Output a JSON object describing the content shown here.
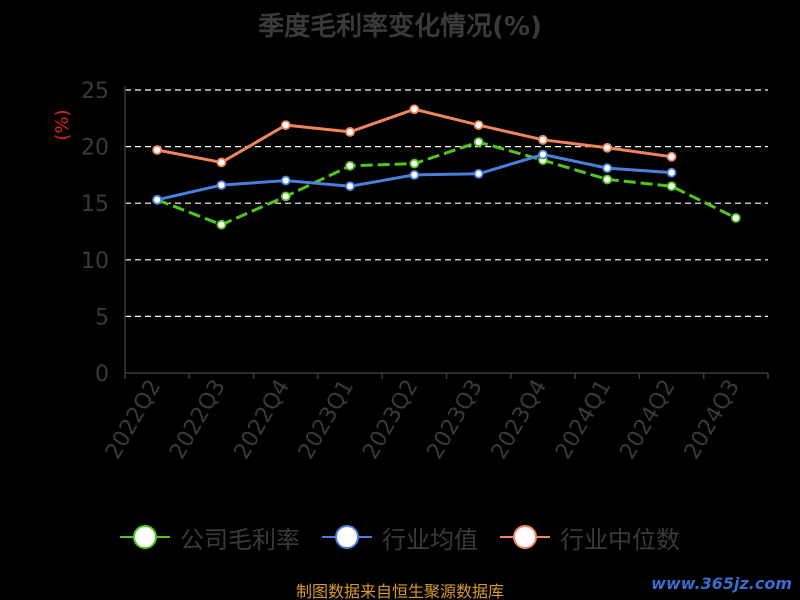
{
  "chart_data": {
    "type": "line",
    "title": "季度毛利率变化情况(%)",
    "ylabel": "(%)",
    "categories": [
      "2022Q2",
      "2022Q3",
      "2022Q4",
      "2023Q1",
      "2023Q2",
      "2023Q3",
      "2023Q4",
      "2024Q1",
      "2024Q2",
      "2024Q3"
    ],
    "ylim": [
      0,
      25
    ],
    "yticks": [
      0,
      5,
      10,
      15,
      20,
      25
    ],
    "grid": true,
    "legend_position": "bottom",
    "series": [
      {
        "name": "公司毛利率",
        "color": "#52c41a",
        "dash": true,
        "values": [
          15.3,
          13.1,
          15.6,
          18.3,
          18.5,
          20.4,
          18.8,
          17.1,
          16.5,
          13.7
        ]
      },
      {
        "name": "行业均值",
        "color": "#4a7fe0",
        "dash": false,
        "values": [
          15.3,
          16.6,
          17.0,
          16.5,
          17.5,
          17.6,
          19.3,
          18.1,
          17.7,
          null
        ]
      },
      {
        "name": "行业中位数",
        "color": "#f0845c",
        "dash": false,
        "values": [
          19.7,
          18.6,
          21.9,
          21.3,
          23.3,
          21.9,
          20.6,
          19.9,
          19.1,
          null
        ]
      }
    ]
  },
  "footer": {
    "source": "制图数据来自恒生聚源数据库",
    "watermark": "www.365jz.com"
  }
}
